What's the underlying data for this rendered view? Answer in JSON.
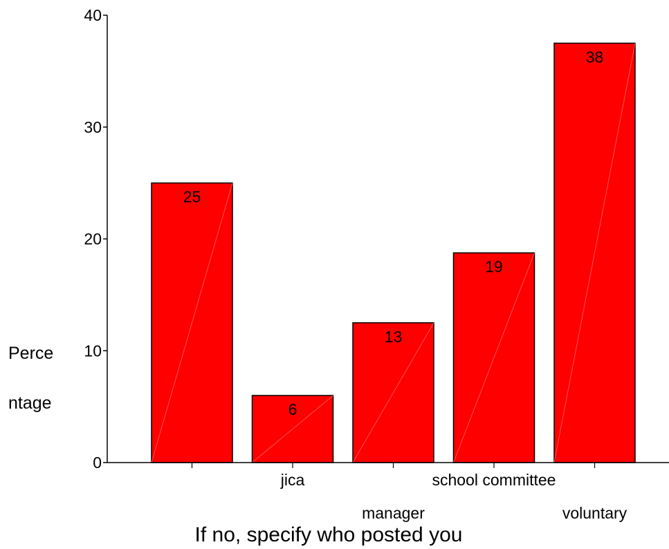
{
  "chart_data": {
    "type": "bar",
    "categories": [
      "",
      "jica",
      "manager",
      "school committee",
      "voluntary"
    ],
    "values": [
      25,
      6,
      12.5,
      18.75,
      37.5
    ],
    "data_labels": [
      "25",
      "6",
      "13",
      "19",
      "38"
    ],
    "xlabel": "If no, specify who posted you",
    "ylabel_lines": [
      "Perce",
      "ntage"
    ],
    "ylim": [
      0,
      40
    ],
    "yticks": [
      0,
      10,
      20,
      30,
      40
    ],
    "grid": false,
    "bar_color": "#ff0000",
    "bar_edge_color": "#000000"
  }
}
